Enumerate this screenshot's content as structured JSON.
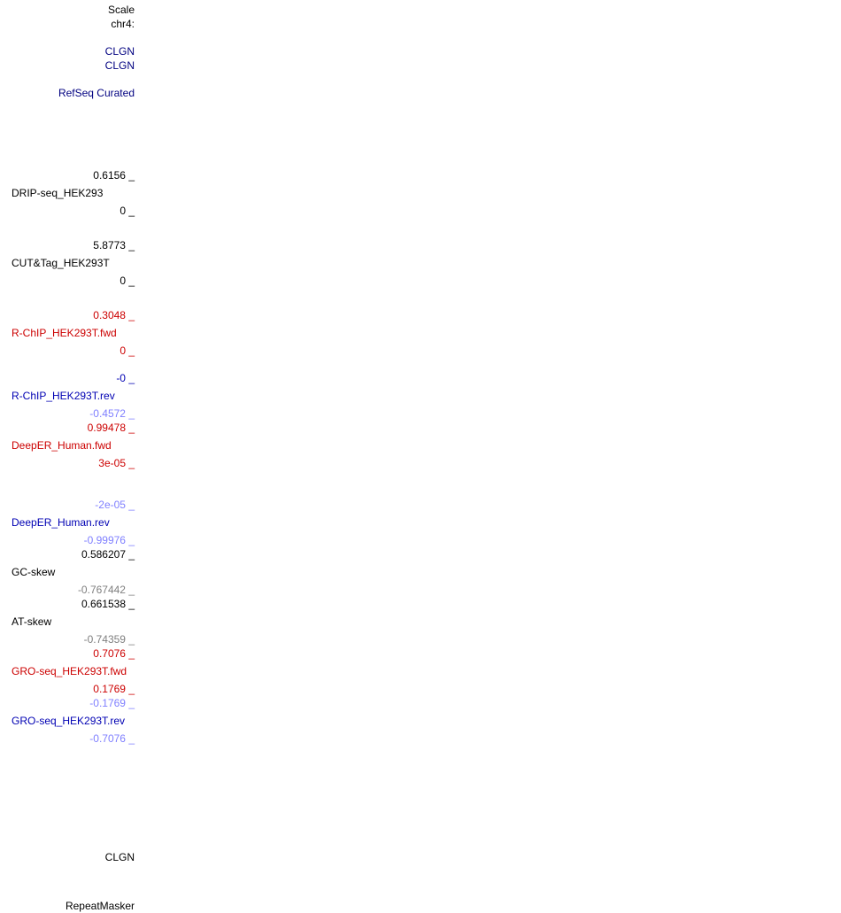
{
  "ruler": {
    "scale_label": "Scale",
    "chrom_label": "chr4:"
  },
  "genes": {
    "clgn_1": "CLGN",
    "clgn_2": "CLGN",
    "refseq_label": "RefSeq Curated"
  },
  "tracks": {
    "drip": {
      "max": "0.6156 _",
      "name": "DRIP-seq_HEK293",
      "min": "0 _"
    },
    "cuttag": {
      "max": "5.8773 _",
      "name": "CUT&Tag_HEK293T",
      "min": "0 _"
    },
    "rchip_fwd": {
      "max": "0.3048 _",
      "name": "R-ChIP_HEK293T.fwd",
      "min": "0 _"
    },
    "rchip_rev": {
      "max": "-0 _",
      "name": "R-ChIP_HEK293T.rev",
      "min": "-0.4572 _"
    },
    "deeper_fwd": {
      "max": "0.99478 _",
      "name": "DeepER_Human.fwd",
      "min": "3e-05 _"
    },
    "deeper_rev": {
      "max": "-2e-05 _",
      "name": "DeepER_Human.rev",
      "min": "-0.99976 _"
    },
    "gc_skew": {
      "max": "0.586207 _",
      "name": "GC-skew",
      "min": "-0.767442 _"
    },
    "at_skew": {
      "max": "0.661538 _",
      "name": "AT-skew",
      "min": "-0.74359 _"
    },
    "gro_fwd": {
      "max": "0.7076 _",
      "name": "GRO-seq_HEK293T.fwd",
      "min": "0.1769 _"
    },
    "gro_rev": {
      "max": "-0.1769 _",
      "name": "GRO-seq_HEK293T.rev",
      "min": "-0.7076 _"
    }
  },
  "bottom": {
    "clgn_label": "CLGN",
    "repeatmasker_label": "RepeatMasker"
  },
  "colors": {
    "default": "#000000",
    "refseq": "#000080",
    "fwd_strand": "#cc0000",
    "rev_strand_min": "#7f7fff",
    "rev_strand_name": "#0000b3",
    "skew_min": "#7f7f7f"
  }
}
